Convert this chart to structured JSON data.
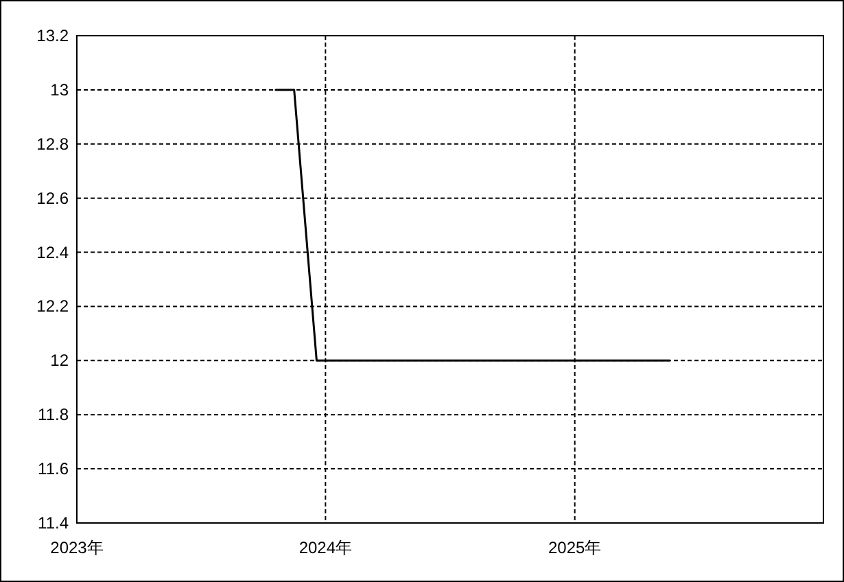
{
  "chart_data": {
    "type": "line",
    "x": [
      "2023-10-20",
      "2023-11-16",
      "2023-12-19",
      "2025-05-20"
    ],
    "series": [
      {
        "color": "#000000",
        "values": [
          13,
          13,
          12,
          12
        ]
      }
    ],
    "xlim": [
      "2023",
      "2026"
    ],
    "xticks": [
      {
        "value": "2023",
        "label": "2023年"
      },
      {
        "value": "2024",
        "label": "2024年"
      },
      {
        "value": "2025",
        "label": "2025年"
      }
    ],
    "ylim": [
      11.4,
      13.2
    ],
    "yticks": [
      11.4,
      11.6,
      11.8,
      12,
      12.2,
      12.4,
      12.6,
      12.8,
      13,
      13.2
    ],
    "grid": true,
    "marker": "none",
    "line_style": "solid"
  }
}
